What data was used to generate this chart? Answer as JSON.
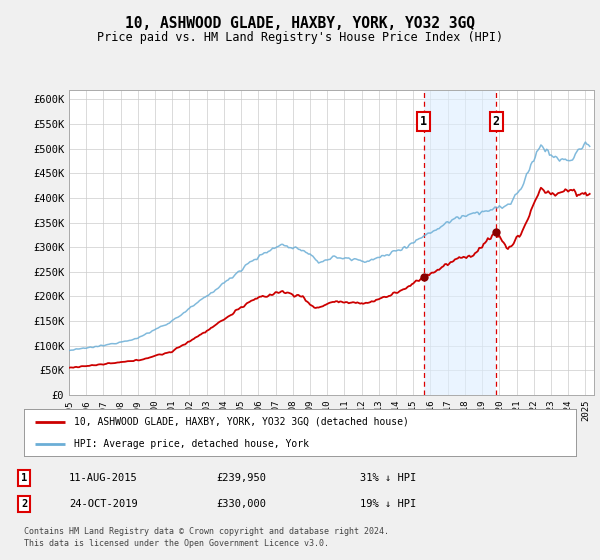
{
  "title": "10, ASHWOOD GLADE, HAXBY, YORK, YO32 3GQ",
  "subtitle": "Price paid vs. HM Land Registry's House Price Index (HPI)",
  "ylim": [
    0,
    620000
  ],
  "yticks": [
    0,
    50000,
    100000,
    150000,
    200000,
    250000,
    300000,
    350000,
    400000,
    450000,
    500000,
    550000,
    600000
  ],
  "ytick_labels": [
    "£0",
    "£50K",
    "£100K",
    "£150K",
    "£200K",
    "£250K",
    "£300K",
    "£350K",
    "£400K",
    "£450K",
    "£500K",
    "£550K",
    "£600K"
  ],
  "xlim_start": 1995.0,
  "xlim_end": 2025.5,
  "xtick_years": [
    1995,
    1996,
    1997,
    1998,
    1999,
    2000,
    2001,
    2002,
    2003,
    2004,
    2005,
    2006,
    2007,
    2008,
    2009,
    2010,
    2011,
    2012,
    2013,
    2014,
    2015,
    2016,
    2017,
    2018,
    2019,
    2020,
    2021,
    2022,
    2023,
    2024,
    2025
  ],
  "transaction1_x": 2015.614,
  "transaction1_y": 239950,
  "transaction2_x": 2019.82,
  "transaction2_y": 330000,
  "hpi_color": "#6baed6",
  "price_color": "#cc0000",
  "legend1_label": "10, ASHWOOD GLADE, HAXBY, YORK, YO32 3GQ (detached house)",
  "legend2_label": "HPI: Average price, detached house, York",
  "transaction1_date": "11-AUG-2015",
  "transaction1_price": "£239,950",
  "transaction1_hpi": "31% ↓ HPI",
  "transaction2_date": "24-OCT-2019",
  "transaction2_price": "£330,000",
  "transaction2_hpi": "19% ↓ HPI",
  "footer": "Contains HM Land Registry data © Crown copyright and database right 2024.\nThis data is licensed under the Open Government Licence v3.0.",
  "bg_color": "#f0f0f0",
  "plot_bg_color": "#ffffff",
  "grid_color": "#cccccc"
}
